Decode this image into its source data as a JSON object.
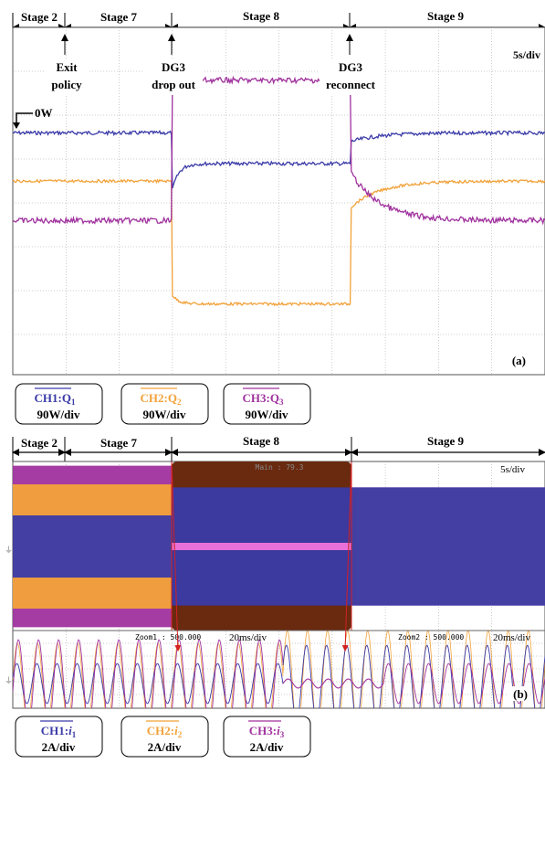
{
  "colors": {
    "ch1": "#3a3aa8",
    "ch2": "#f2a23a",
    "ch3": "#a0329e",
    "grid": "#9a9a9a",
    "frame": "#555555",
    "arrow": "#d42020",
    "brown": "#6a2a10",
    "screen": "#ffffff"
  },
  "panel_a": {
    "stages": [
      "Stage 2",
      "Stage 7",
      "Stage 8",
      "Stage 9"
    ],
    "time_scale": "5s/div",
    "events": [
      {
        "line1": "Exit",
        "line2": "policy"
      },
      {
        "line1": "DG3",
        "line2": "drop out"
      },
      {
        "line1": "DG3",
        "line2": "reconnect"
      }
    ],
    "zero_label": "0W",
    "label": "(a)",
    "channels": [
      {
        "name": "CH1:Q",
        "sub": "1",
        "scale": "90W/div"
      },
      {
        "name": "CH2:Q",
        "sub": "2",
        "scale": "90W/div"
      },
      {
        "name": "CH3:Q",
        "sub": "3",
        "scale": "90W/div"
      }
    ]
  },
  "panel_b": {
    "stages": [
      "Stage 2",
      "Stage 7",
      "Stage 8",
      "Stage 9"
    ],
    "time_scale": "5s/div",
    "zoom1": {
      "label": "Zoom1 : 500.000",
      "scale": "20ms/div"
    },
    "zoom2": {
      "label": "Zoom2 : 500.000",
      "scale": "20ms/div"
    },
    "main_label": "Main : 79.3",
    "label": "(b)",
    "channels": [
      {
        "name": "CH1:",
        "var": "i",
        "sub": "1",
        "scale": "2A/div"
      },
      {
        "name": "CH2:",
        "var": "i",
        "sub": "2",
        "scale": "2A/div"
      },
      {
        "name": "CH3:",
        "var": "i",
        "sub": "3",
        "scale": "2A/div"
      }
    ]
  },
  "chart_data": [
    {
      "type": "line",
      "title": "(a)",
      "xlabel": "5s/div",
      "ylabel": "90W/div",
      "x_divisions": 10,
      "stages": [
        {
          "name": "Stage 2",
          "x_start": 0.0,
          "x_end": 1.2
        },
        {
          "name": "Stage 7",
          "x_start": 1.2,
          "x_end": 3.6
        },
        {
          "name": "Stage 8",
          "x_start": 3.6,
          "x_end": 7.6
        },
        {
          "name": "Stage 9",
          "x_start": 7.6,
          "x_end": 11.8
        }
      ],
      "series": [
        {
          "name": "CH1:Q1",
          "x": [
            0,
            3.6,
            3.6,
            7.6,
            7.6,
            11.8
          ],
          "y": [
            3.7,
            3.7,
            2.4,
            3.0,
            3.5,
            3.7
          ]
        },
        {
          "name": "CH2:Q2",
          "x": [
            0,
            3.6,
            3.6,
            7.6,
            7.6,
            11.8
          ],
          "y": [
            2.6,
            2.6,
            0.0,
            -0.2,
            2.0,
            2.6
          ]
        },
        {
          "name": "CH3:Q3",
          "x": [
            0,
            3.6,
            3.6,
            7.6,
            7.6,
            11.8
          ],
          "y": [
            1.7,
            1.7,
            4.9,
            4.9,
            2.8,
            1.7
          ]
        }
      ]
    },
    {
      "type": "line",
      "title": "(b)",
      "xlabel": "5s/div",
      "ylabel": "2A/div",
      "stages": [
        {
          "name": "Stage 2",
          "x_start": 0.0,
          "x_end": 1.2
        },
        {
          "name": "Stage 7",
          "x_start": 1.2,
          "x_end": 3.6
        },
        {
          "name": "Stage 8",
          "x_start": 3.6,
          "x_end": 7.6
        },
        {
          "name": "Stage 9",
          "x_start": 7.6,
          "x_end": 11.8
        }
      ],
      "series": [
        {
          "name": "CH1:i1",
          "amplitude": [
            1.0,
            1.0,
            1.9,
            1.9
          ]
        },
        {
          "name": "CH2:i2",
          "amplitude": [
            2.0,
            2.0,
            0.0,
            2.2
          ]
        },
        {
          "name": "CH3:i3",
          "amplitude": [
            2.6,
            2.6,
            0.9,
            1.9
          ]
        }
      ]
    }
  ]
}
